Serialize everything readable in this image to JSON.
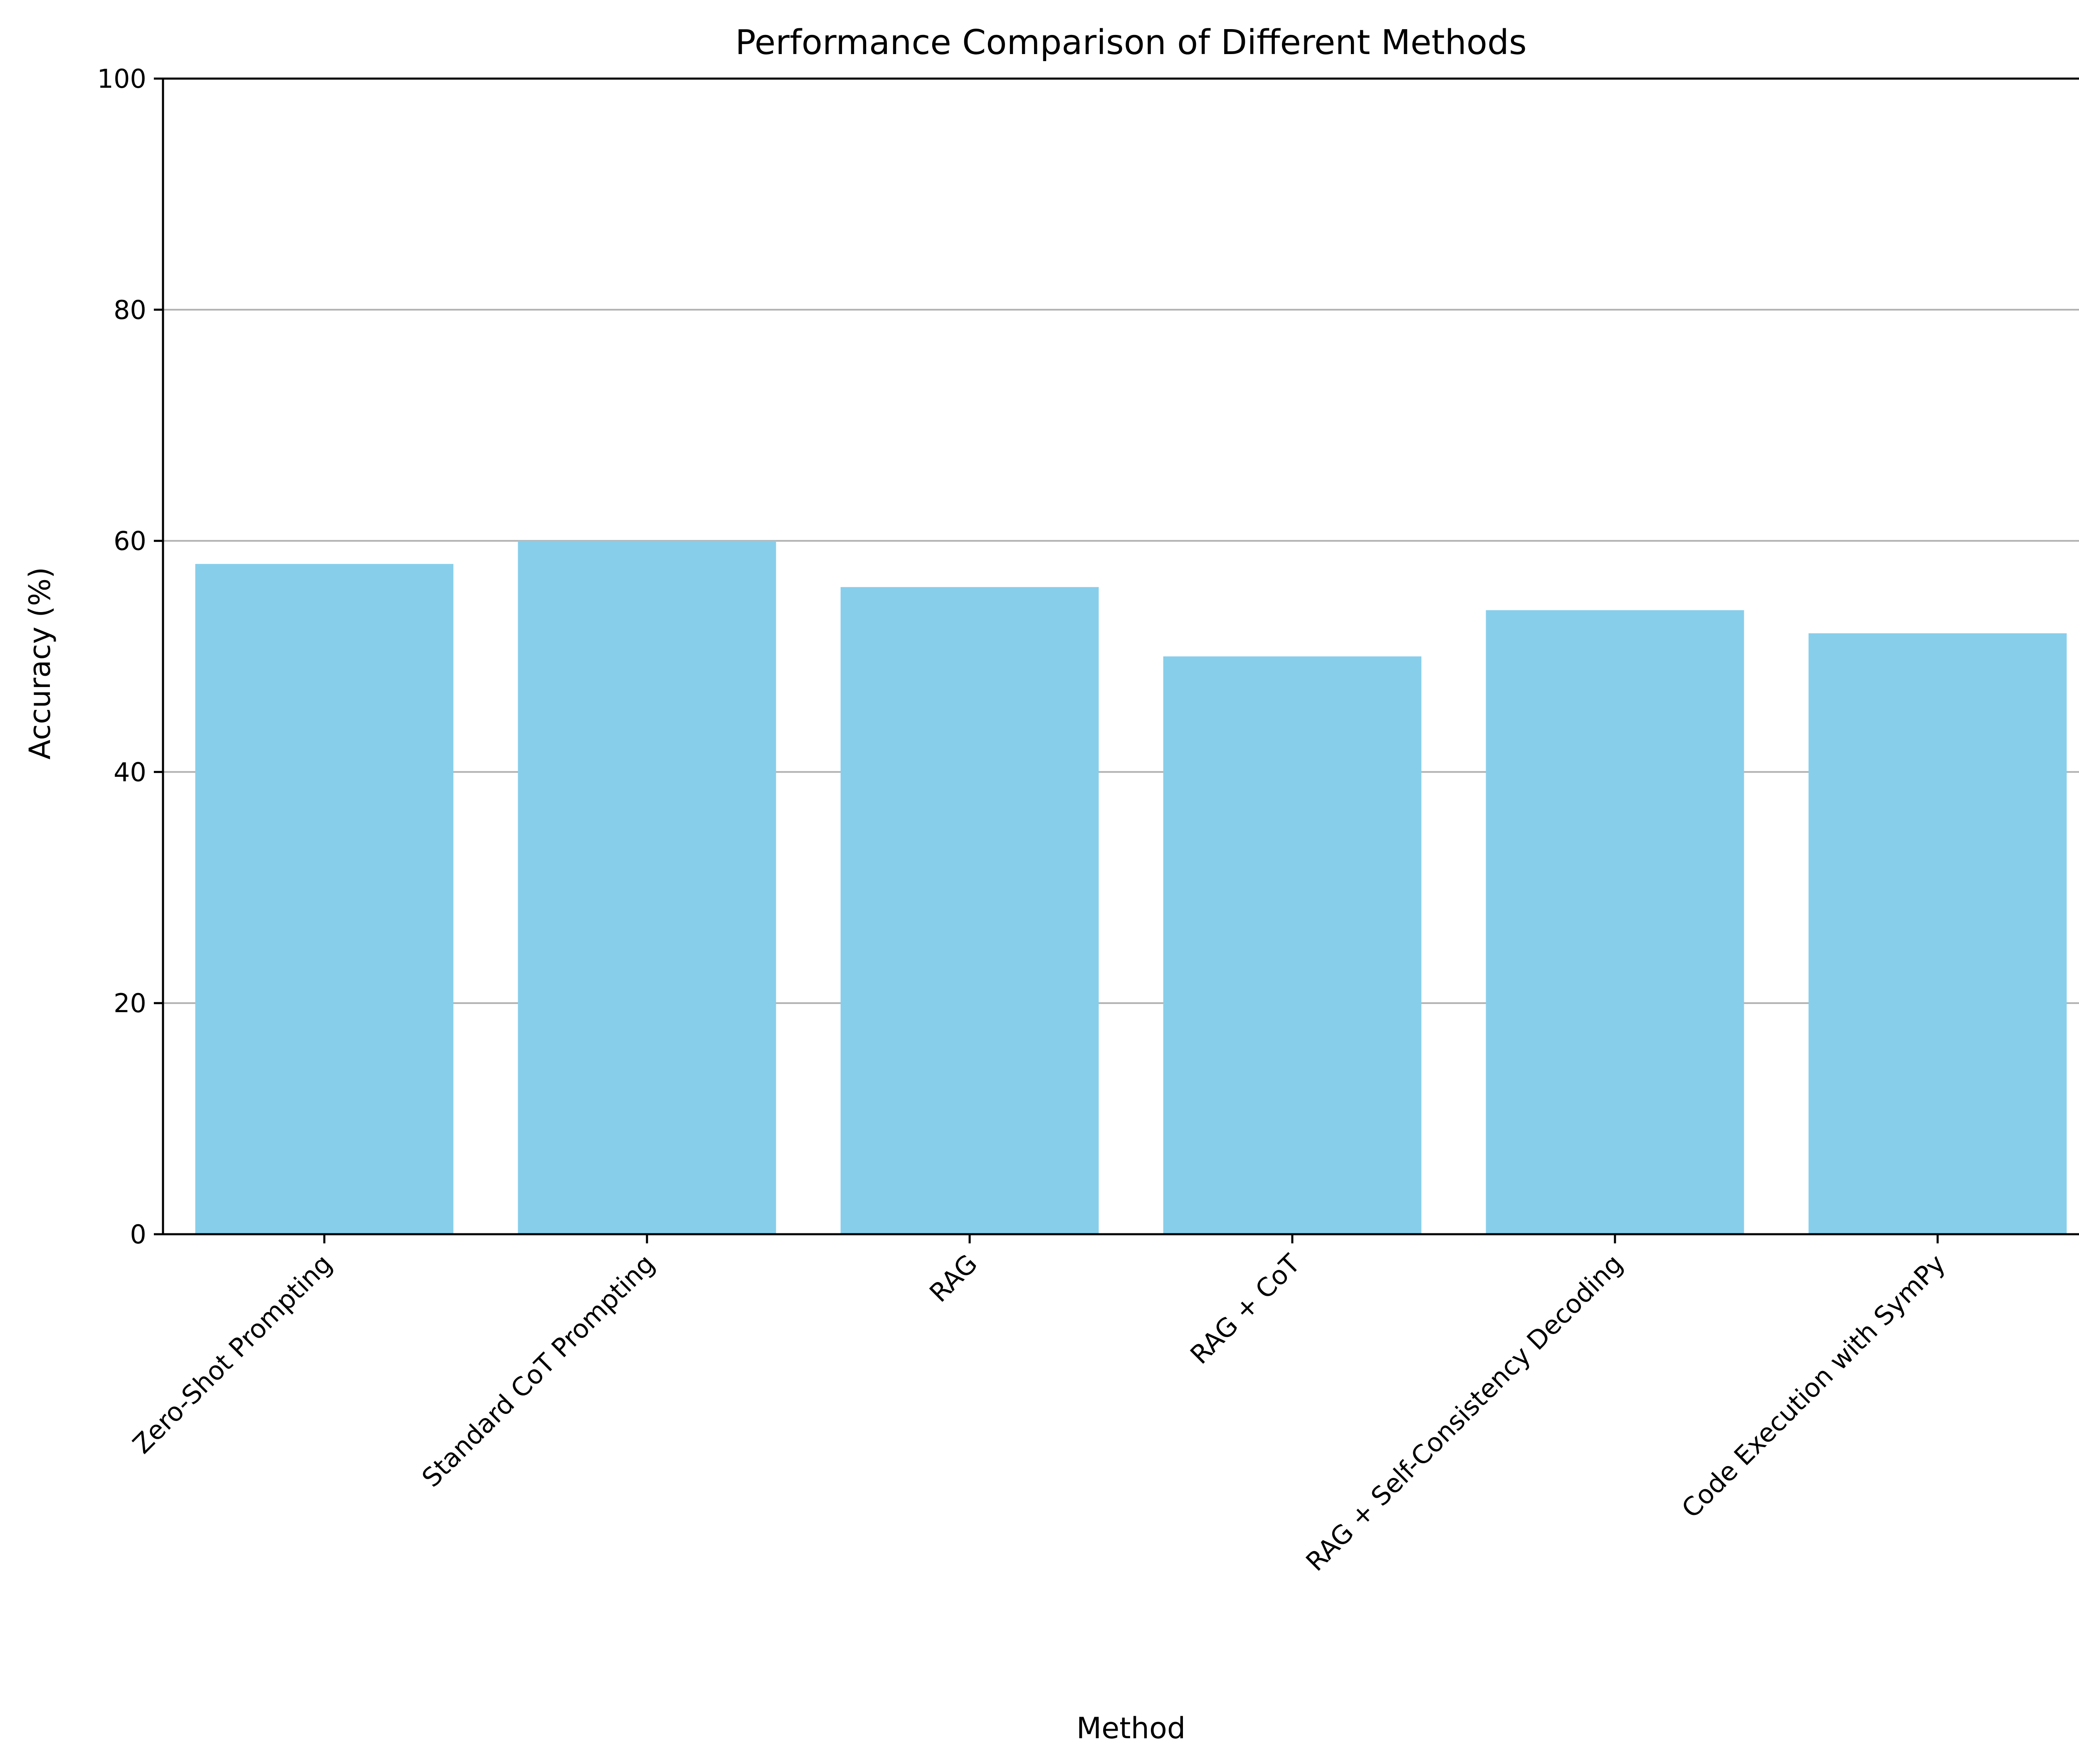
{
  "chart_data": {
    "type": "bar",
    "title": "Performance Comparison of Different Methods",
    "xlabel": "Method",
    "ylabel": "Accuracy (%)",
    "categories": [
      "Zero-Shot Prompting",
      "Standard CoT Prompting",
      "RAG",
      "RAG + CoT",
      "RAG + Self-Consistency Decoding",
      "Code Execution with SymPy"
    ],
    "values": [
      58,
      60,
      56,
      50,
      54,
      52
    ],
    "ylim": [
      0,
      100
    ],
    "yticks": [
      0,
      20,
      40,
      60,
      80,
      100
    ],
    "grid": "y",
    "legend": "none",
    "bar_color": "#87CEEB",
    "grid_color": "#b0b0b0"
  }
}
